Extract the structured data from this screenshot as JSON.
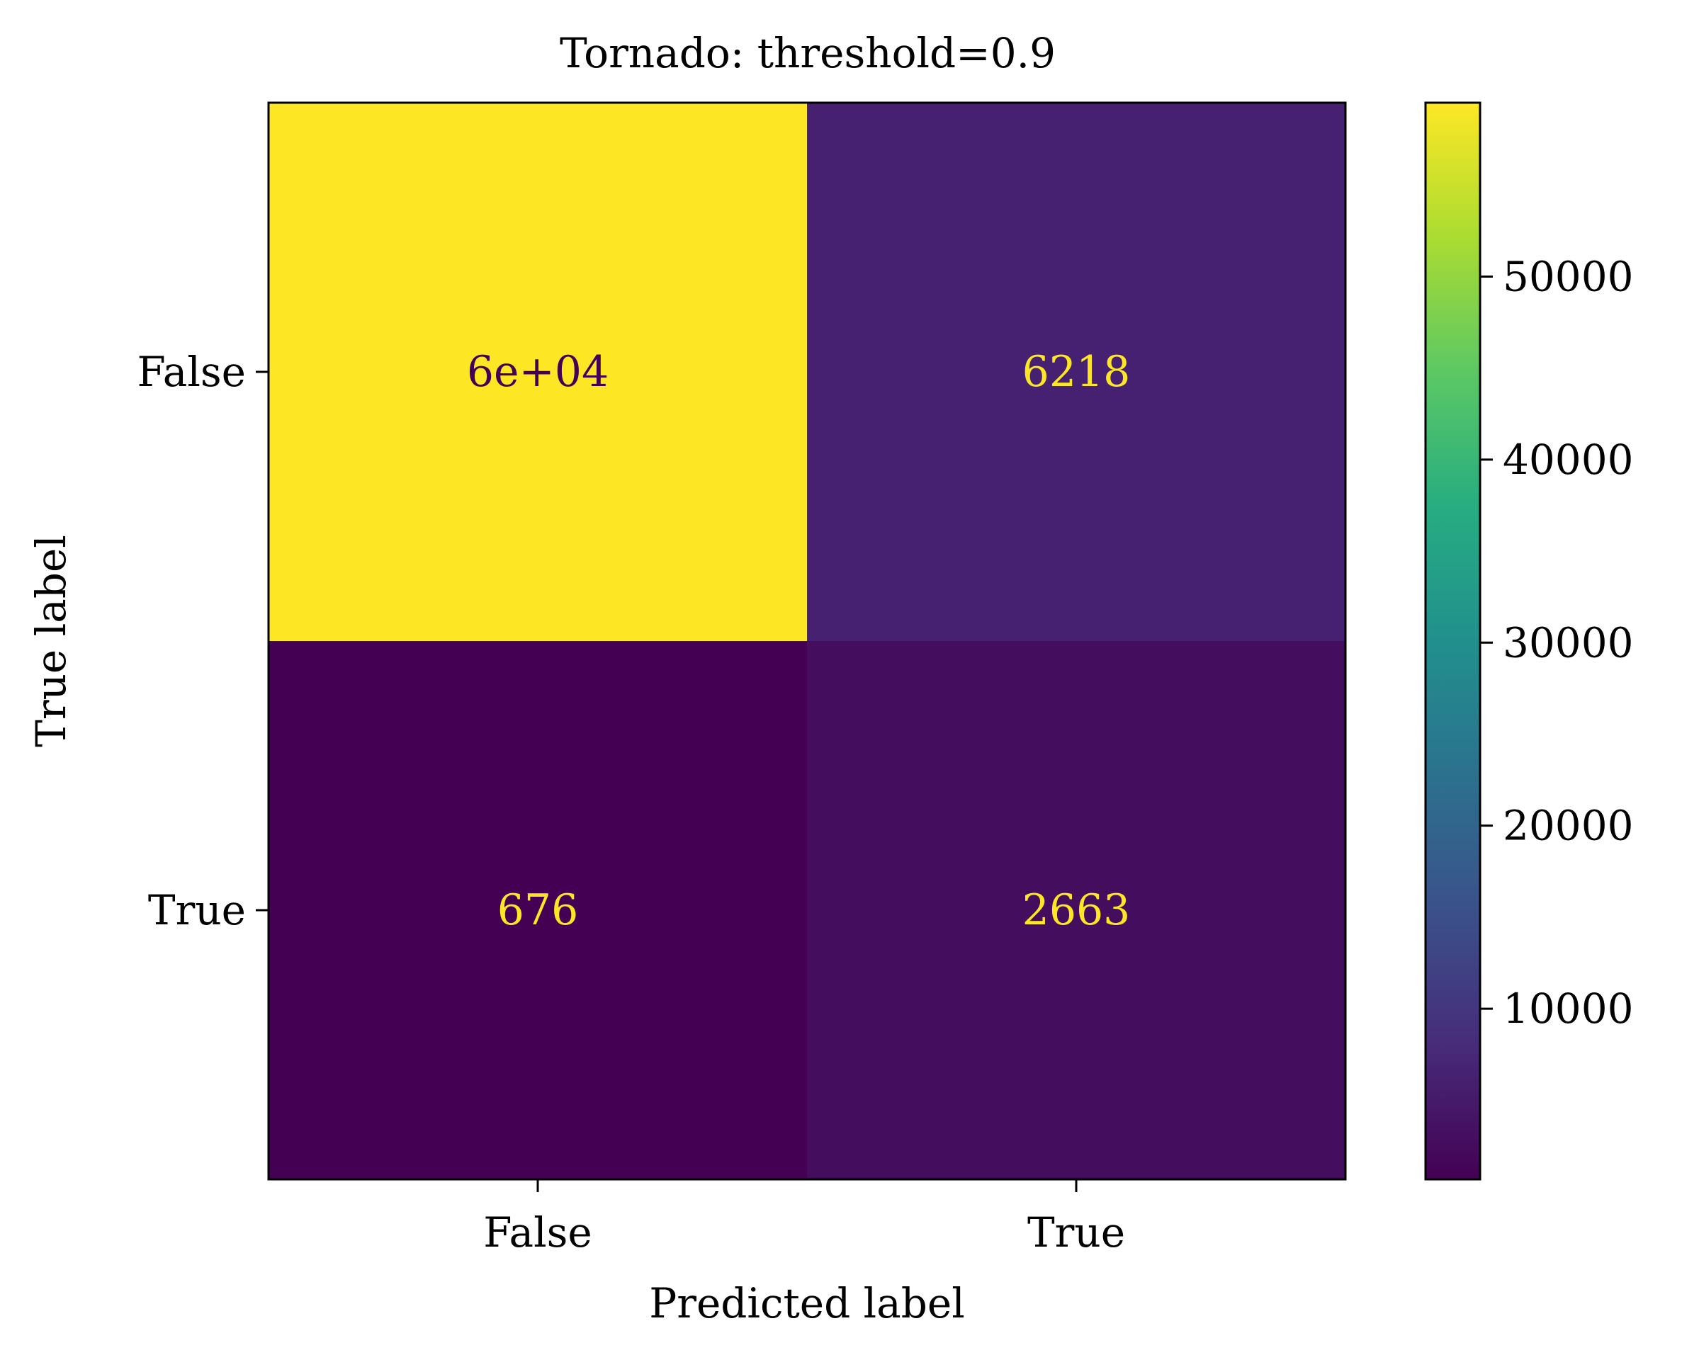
{
  "chart_data": {
    "type": "heatmap",
    "title": "Tornado: threshold=0.9",
    "xlabel": "Predicted label",
    "ylabel": "True label",
    "x_categories": [
      "False",
      "True"
    ],
    "y_categories": [
      "False",
      "True"
    ],
    "values": [
      [
        59500,
        6218
      ],
      [
        676,
        2663
      ]
    ],
    "cell_labels": [
      [
        "6e+04",
        "6218"
      ],
      [
        "676",
        "2663"
      ]
    ],
    "colormap": "viridis",
    "colorbar": {
      "range": [
        676,
        59500
      ],
      "ticks": [
        10000,
        20000,
        30000,
        40000,
        50000
      ],
      "tick_labels": [
        "10000",
        "20000",
        "30000",
        "40000",
        "50000"
      ]
    },
    "text_colors": {
      "on_dark": "#fde725",
      "on_light": "#440154"
    },
    "grid": false
  }
}
